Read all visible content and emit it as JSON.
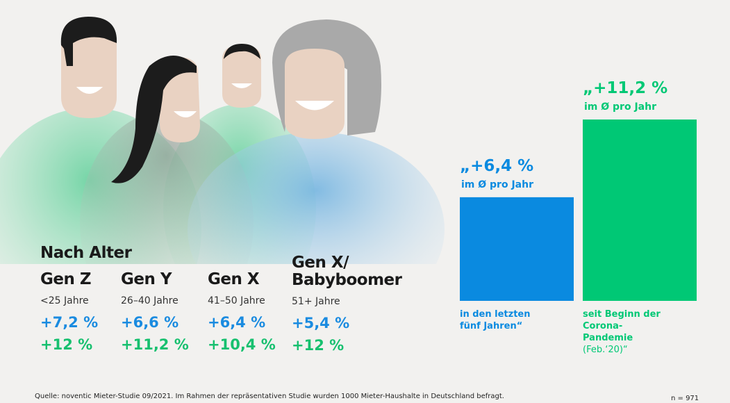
{
  "section_title": "Nach Alter",
  "generations": [
    {
      "name": "Gen Z",
      "age": "<25 Jahre",
      "value_5y": "+7,2 %",
      "value_corona": "+12 %"
    },
    {
      "name": "Gen Y",
      "age": "26–40 Jahre",
      "value_5y": "+6,6 %",
      "value_corona": "+11,2 %"
    },
    {
      "name": "Gen X",
      "age": "41–50 Jahre",
      "value_5y": "+6,4 %",
      "value_corona": "+10,4 %"
    },
    {
      "name_line1": "Gen X/",
      "name_line2": "Babyboomer",
      "age": "51+ Jahre",
      "value_5y": "+5,4 %",
      "value_corona": "+12 %"
    }
  ],
  "chart_data": {
    "type": "bar",
    "categories": [
      "in den letzten fünf Jahren“",
      "seit Beginn der Corona-Pandemie (Feb.‘20)“"
    ],
    "values": [
      6.4,
      11.2
    ],
    "colors": [
      "#0a8ae0",
      "#00c875"
    ],
    "bars": [
      {
        "value_label": "„+6,4 %",
        "unit_label": "im Ø pro Jahr",
        "caption_lines": [
          "in den letzten",
          "fünf Jahren“"
        ]
      },
      {
        "value_label": "„+11,2 %",
        "unit_label": "im Ø pro Jahr",
        "caption_lines": [
          "seit Beginn der",
          "Corona-",
          "Pandemie"
        ],
        "caption_note": "(Feb.‘20)“"
      }
    ],
    "ylim": [
      0,
      11.2
    ]
  },
  "colors": {
    "blue": "#1a8be0",
    "green": "#17c06f",
    "background": "#f2f1ef"
  },
  "footer": {
    "source": "Quelle: noventic Mieter-Studie 09/2021. Im Rahmen der repräsentativen Studie wurden 1000 Mieter-Haushalte in Deutschland befragt.",
    "sample": "n = 971"
  }
}
